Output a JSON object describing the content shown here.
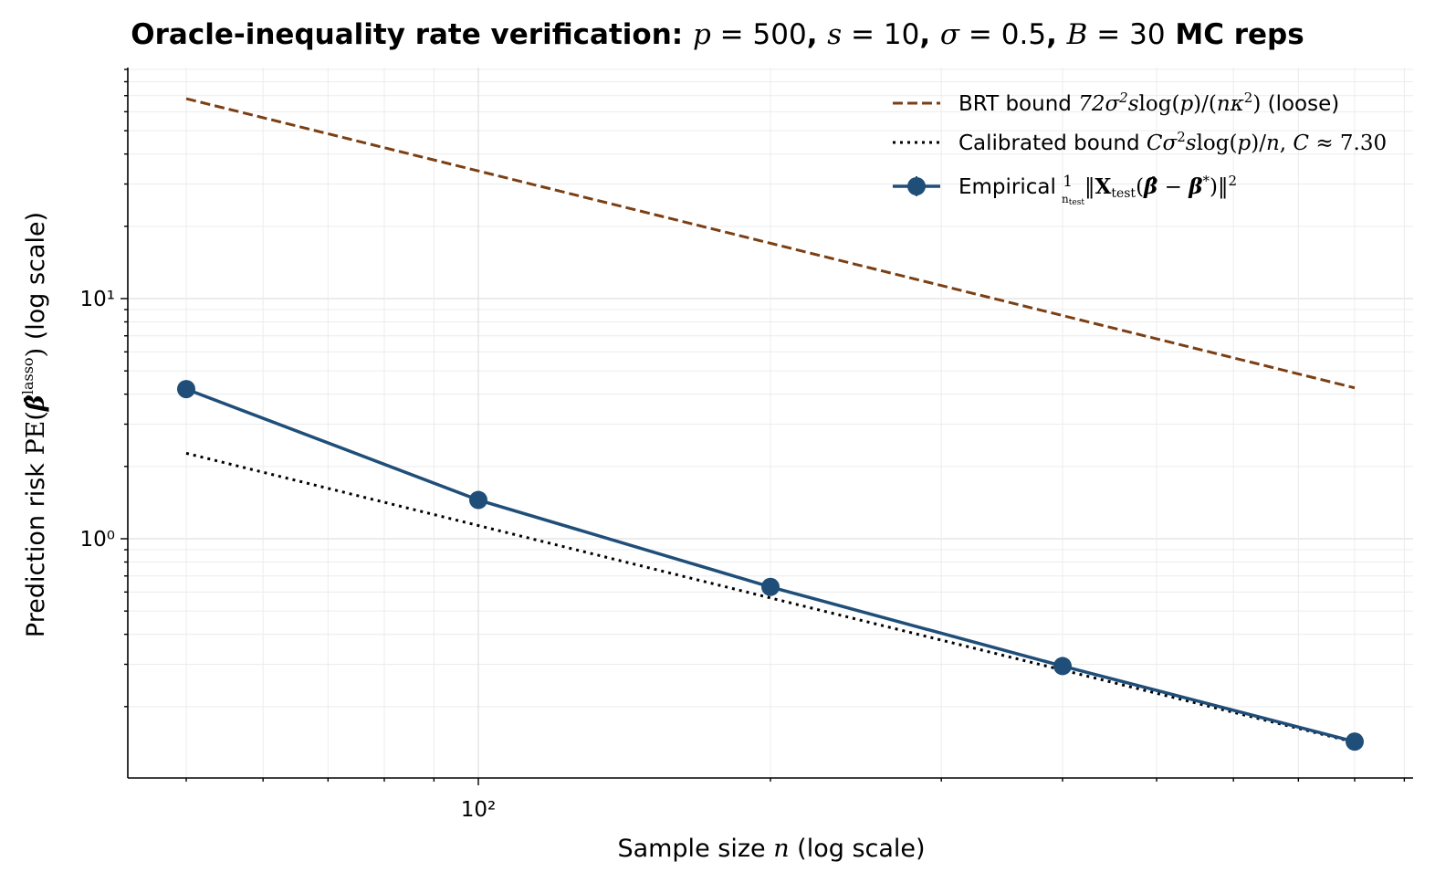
{
  "chart_data": {
    "type": "line",
    "title": "Oracle-inequality rate verification: p = 500, s = 10, σ = 0.5, B = 30 MC reps",
    "xlabel": "Sample size n (log scale)",
    "ylabel": "Prediction risk PE(β̂^lasso)  (log scale)",
    "xscale": "log",
    "yscale": "log",
    "xlim": [
      46,
      430
    ],
    "ylim": [
      0.155,
      90
    ],
    "x_tick_labels": [
      {
        "value": 100,
        "label": "10²"
      }
    ],
    "y_tick_labels": [
      {
        "value": 1,
        "label": "10⁰"
      },
      {
        "value": 10,
        "label": "10¹"
      }
    ],
    "grid": true,
    "legend_position": "upper right",
    "x": [
      50,
      100,
      200,
      400,
      800
    ],
    "series": [
      {
        "name": "BRT bound 72σ²s log(p)/(nκ²)  (loose)",
        "style": "dashed",
        "color": "#7b3f14",
        "values": [
          68.0,
          34.0,
          17.0,
          8.5,
          4.25
        ]
      },
      {
        "name": "Calibrated bound Cσ² s log(p)/n, C ≈ 7.30",
        "style": "dotted",
        "color": "#000000",
        "values": [
          2.27,
          1.135,
          0.567,
          0.284,
          0.142
        ]
      },
      {
        "name": "Empirical (1/n_test)‖X_test(β̂ − β*)‖²",
        "style": "solid-marker",
        "color": "#1f4e79",
        "values": [
          4.2,
          1.45,
          0.63,
          0.295,
          0.143
        ],
        "errors": [
          0.25,
          0.08,
          0.03,
          0.012,
          0.005
        ]
      }
    ]
  }
}
